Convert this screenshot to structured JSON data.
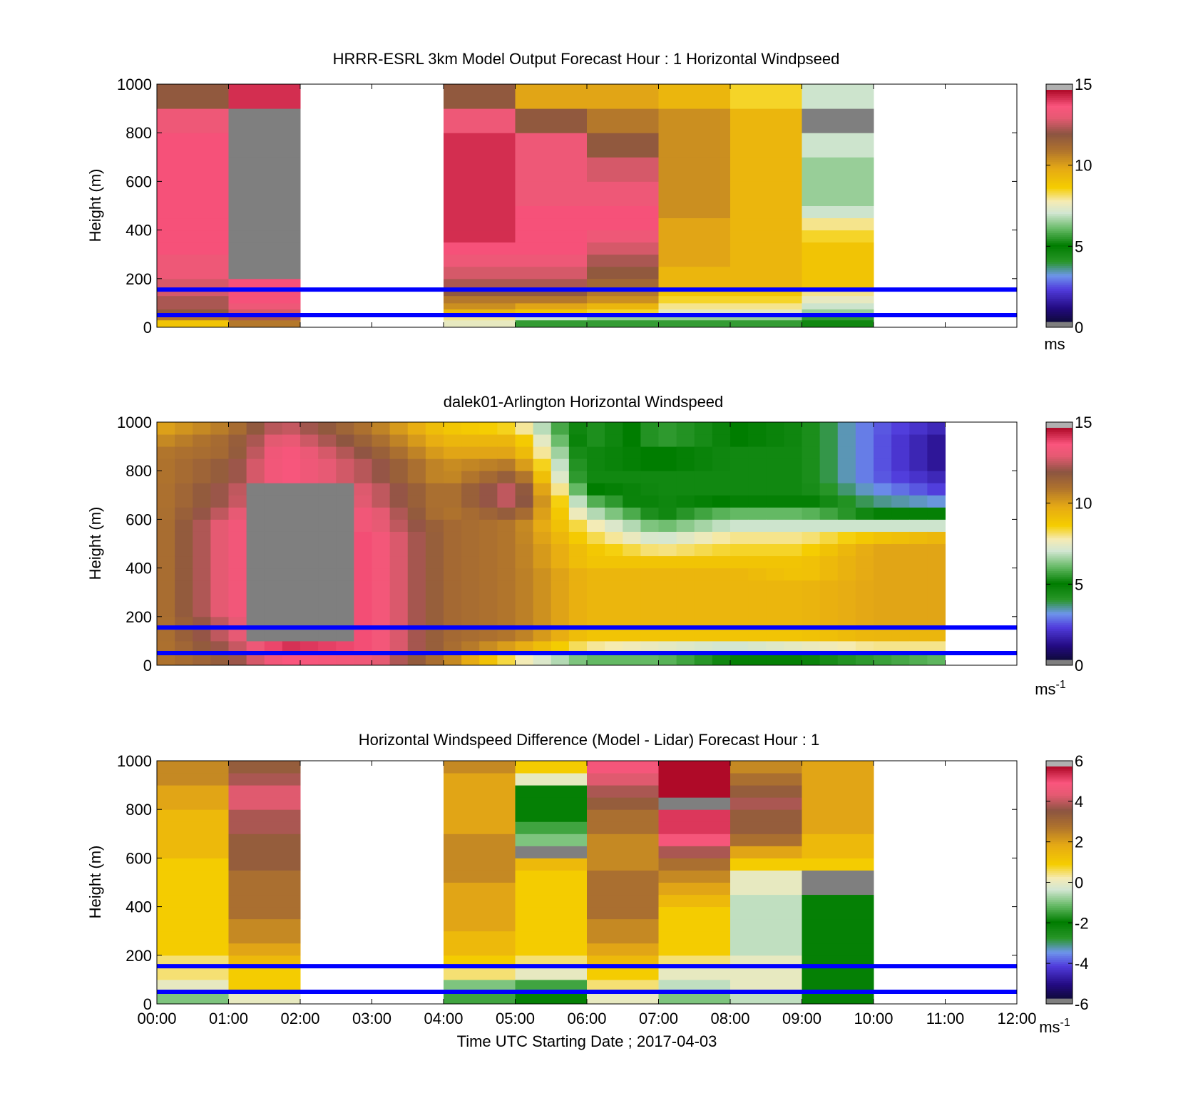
{
  "figure": {
    "xlabel": "Time UTC  Starting Date ; 2017-04-03",
    "x_ticks": [
      "00:00",
      "01:00",
      "02:00",
      "03:00",
      "04:00",
      "05:00",
      "06:00",
      "07:00",
      "08:00",
      "09:00",
      "10:00",
      "11:00",
      "12:00"
    ],
    "reference_line_color": "#0000ff"
  },
  "chart_data": [
    {
      "type": "heatmap",
      "title": "HRRR-ESRL 3km Model Output   Forecast Hour : 1 Horizontal Windpseed",
      "ylabel": "Height (m)",
      "xlim_hours": [
        0,
        12
      ],
      "ylim": [
        0,
        1000
      ],
      "y_ticks": [
        0,
        200,
        400,
        600,
        800,
        1000
      ],
      "colorbar": {
        "range": [
          0,
          15
        ],
        "ticks": [
          0,
          5,
          10,
          15
        ],
        "unit": "ms"
      },
      "reference_lines_m": [
        155,
        50
      ],
      "level_edges_m": [
        0,
        30,
        50,
        75,
        100,
        130,
        155,
        200,
        250,
        300,
        350,
        400,
        450,
        500,
        600,
        700,
        800,
        900,
        1000
      ],
      "columns": [
        {
          "hour": 0,
          "values": [
            9,
            11,
            12,
            12.5,
            12.5,
            13,
            13,
            13.5,
            13.5,
            14,
            14,
            14,
            14,
            14,
            14,
            14,
            13.5,
            12
          ]
        },
        {
          "hour": 1,
          "values": [
            11,
            12.5,
            13,
            13.5,
            14,
            14,
            14,
            "NaN",
            "NaN",
            "NaN",
            "NaN",
            "NaN",
            "NaN",
            "NaN",
            "NaN",
            "NaN",
            "NaN",
            14.5
          ]
        },
        {
          "hour": 4,
          "values": [
            7.5,
            8,
            9.5,
            10.5,
            11,
            12,
            12.5,
            13,
            13.5,
            14,
            14.5,
            14.5,
            14.5,
            14.5,
            14.5,
            14.5,
            13.5,
            12
          ]
        },
        {
          "hour": 5,
          "values": [
            5.5,
            7,
            9,
            10,
            11,
            12,
            12.5,
            13,
            13.5,
            14,
            14,
            14,
            14,
            13.5,
            13.5,
            13.5,
            12,
            10
          ]
        },
        {
          "hour": 6,
          "values": [
            5.5,
            6.5,
            8.5,
            9.5,
            10.5,
            11,
            11.5,
            12,
            12.5,
            13,
            13.5,
            14,
            14,
            13.5,
            13,
            12,
            11,
            10
          ]
        },
        {
          "hour": 7,
          "values": [
            5.5,
            6.5,
            7.5,
            8,
            8.5,
            9,
            9.5,
            9.5,
            10,
            10,
            10,
            10,
            10.5,
            10.5,
            10.5,
            10.5,
            10.5,
            9.5
          ]
        },
        {
          "hour": 8,
          "values": [
            5.5,
            6.5,
            7.5,
            8,
            8.5,
            9,
            9.5,
            9.5,
            9.5,
            9.5,
            9.5,
            9.5,
            9.5,
            9.5,
            9.5,
            9.5,
            9.5,
            8.5
          ]
        },
        {
          "hour": 9,
          "values": [
            4.5,
            5.5,
            6.5,
            7,
            7.5,
            8,
            9,
            9,
            9,
            9,
            8.5,
            8,
            7,
            6.5,
            6.5,
            7,
            "NaN",
            7
          ]
        }
      ]
    },
    {
      "type": "heatmap",
      "title": "dalek01-Arlington  Horizontal Windspeed",
      "ylabel": "Height (m)",
      "xlim_hours": [
        0,
        12
      ],
      "ylim": [
        0,
        1000
      ],
      "y_ticks": [
        0,
        200,
        400,
        600,
        800,
        1000
      ],
      "colorbar": {
        "range": [
          0,
          15
        ],
        "ticks": [
          0,
          5,
          10,
          15
        ],
        "unit": "ms",
        "unit_exponent": "-1"
      },
      "reference_lines_m": [
        155,
        50
      ],
      "level_edges_m": [
        0,
        50,
        100,
        150,
        200,
        250,
        300,
        350,
        400,
        450,
        500,
        550,
        600,
        650,
        700,
        750,
        800,
        850,
        900,
        950,
        1000
      ],
      "time_step_hours": 0.25,
      "time_end_hours": 11.0,
      "missing_region": {
        "t0": 1.3,
        "t1": 2.8,
        "z0": 100,
        "z1": 750
      },
      "profiles_by_hour": [
        {
          "hour": 0.0,
          "profile": [
            11,
            11,
            11,
            11,
            11,
            11,
            11,
            11,
            11,
            11,
            11,
            11,
            11,
            11,
            11,
            11,
            11,
            11,
            10.5,
            10
          ]
        },
        {
          "hour": 1.0,
          "profile": [
            12,
            12.5,
            13,
            13,
            13.5,
            13.5,
            13.5,
            13.5,
            13.5,
            13.5,
            13.5,
            13.5,
            13,
            12.5,
            12.5,
            12,
            12,
            11.5,
            11.5,
            11
          ]
        },
        {
          "hour": 1.75,
          "profile": [
            14,
            14.5,
            14.5,
            14.5,
            14.5,
            14.5,
            14.5,
            14.5,
            14.5,
            14.5,
            14.5,
            14.5,
            14.5,
            14.5,
            14,
            14,
            14,
            14,
            13.5,
            13
          ]
        },
        {
          "hour": 3.0,
          "profile": [
            13.5,
            14,
            14,
            14,
            14,
            14,
            14,
            14,
            14,
            14,
            14,
            13.5,
            13.5,
            13,
            13,
            12.5,
            12.5,
            12,
            11.5,
            11
          ]
        },
        {
          "hour": 4.0,
          "profile": [
            11,
            11.5,
            11.5,
            11.5,
            11.5,
            11.5,
            11.5,
            11.5,
            11.5,
            11.5,
            11.5,
            11.5,
            11,
            11,
            11,
            10.5,
            10.5,
            10,
            9.5,
            9
          ]
        },
        {
          "hour": 5.0,
          "profile": [
            8,
            10,
            11,
            11,
            11,
            11,
            11,
            11,
            11,
            11,
            11,
            11,
            12,
            13,
            13,
            12,
            11,
            10,
            9.5,
            8.5
          ]
        },
        {
          "hour": 6.0,
          "profile": [
            6,
            8,
            9,
            9.5,
            9.5,
            9.5,
            9.5,
            9.5,
            9,
            9,
            8.5,
            8,
            7,
            6,
            5,
            4.5,
            4.5,
            4.5,
            4,
            4
          ]
        },
        {
          "hour": 7.0,
          "profile": [
            6,
            7.5,
            9,
            9.5,
            9.5,
            9.5,
            9.5,
            9.5,
            9,
            8,
            7,
            6,
            5,
            4.5,
            4.5,
            4.5,
            5,
            5,
            5.5,
            5.5
          ]
        },
        {
          "hour": 8.0,
          "profile": [
            5,
            7,
            9,
            9.5,
            9.5,
            9.5,
            9.5,
            9.5,
            9,
            8.5,
            8,
            7,
            6,
            5,
            4.5,
            4.5,
            4.5,
            4.5,
            5,
            5
          ]
        },
        {
          "hour": 9.0,
          "profile": [
            5,
            7.5,
            9,
            9.5,
            9.5,
            9.5,
            9.5,
            9,
            9,
            8.5,
            8,
            7,
            6,
            5,
            4.5,
            4.5,
            4.5,
            4.5,
            4.5,
            4.5
          ]
        },
        {
          "hour": 10.0,
          "profile": [
            5.5,
            8,
            9.5,
            10,
            10,
            10,
            10,
            10,
            10,
            10,
            9,
            7,
            5,
            3.5,
            3,
            2.5,
            2.5,
            2.5,
            2.5,
            2.5
          ]
        },
        {
          "hour": 11.0,
          "profile": [
            6,
            8,
            9.5,
            10,
            10,
            10,
            10,
            10,
            10,
            10,
            9.5,
            7,
            5,
            3,
            2,
            1.5,
            1,
            1,
            1,
            1.5
          ]
        }
      ]
    },
    {
      "type": "heatmap",
      "title": "Horizontal Windspeed Difference (Model - Lidar) Forecast Hour : 1",
      "ylabel": "Height (m)",
      "xlim_hours": [
        0,
        12
      ],
      "ylim": [
        0,
        1000
      ],
      "y_ticks": [
        0,
        200,
        400,
        600,
        800,
        1000
      ],
      "colorbar": {
        "range": [
          -6,
          6
        ],
        "ticks": [
          -6,
          -4,
          -2,
          0,
          2,
          4,
          6
        ],
        "unit": "ms",
        "unit_exponent": "-1"
      },
      "reference_lines_m": [
        155,
        50
      ],
      "level_edges_m": [
        0,
        50,
        100,
        150,
        200,
        250,
        300,
        350,
        400,
        450,
        500,
        550,
        600,
        650,
        700,
        750,
        800,
        850,
        900,
        950,
        1000
      ],
      "columns": [
        {
          "hour": 0,
          "values": [
            -1,
            0,
            0.5,
            0.5,
            1,
            1,
            1,
            1,
            1,
            1,
            1,
            1,
            1.5,
            1.5,
            1.5,
            1.5,
            2,
            2,
            2.5,
            2.5
          ]
        },
        {
          "hour": 1,
          "values": [
            0,
            1,
            1,
            1.5,
            2,
            2.5,
            2.5,
            3,
            3,
            3,
            3,
            3.5,
            3.5,
            3.5,
            4,
            4,
            4.5,
            4.5,
            4,
            3.5
          ]
        },
        {
          "hour": 4,
          "values": [
            -1.5,
            -1,
            0.5,
            1,
            1.5,
            1.5,
            2,
            2,
            2,
            2,
            2.5,
            2.5,
            2.5,
            2.5,
            2,
            2,
            2,
            2,
            2,
            2.5
          ]
        },
        {
          "hour": 5,
          "values": [
            -2,
            -1.5,
            0,
            0.5,
            1,
            1,
            1,
            1,
            1,
            1,
            1,
            1.5,
            "NaN",
            -1,
            -1.5,
            -2,
            -2,
            -2,
            0,
            1
          ]
        },
        {
          "hour": 6,
          "values": [
            0,
            0.5,
            1,
            1.5,
            2,
            2.5,
            2.5,
            3,
            3,
            3,
            3,
            2.5,
            2.5,
            2.5,
            3,
            3,
            3.5,
            4,
            4.5,
            5
          ]
        },
        {
          "hour": 7,
          "values": [
            -1,
            -0.5,
            0,
            0.5,
            1,
            1,
            1,
            1,
            1.5,
            2,
            2.5,
            3,
            4,
            5,
            5.5,
            5.5,
            "NaN",
            6,
            6,
            6
          ]
        },
        {
          "hour": 8,
          "values": [
            -0.5,
            0,
            0,
            0,
            -0.5,
            -0.5,
            -0.5,
            -0.5,
            -0.5,
            0,
            0,
            1,
            2,
            3,
            3.5,
            3.5,
            4,
            3.5,
            3,
            2.5
          ]
        },
        {
          "hour": 9,
          "values": [
            -2,
            -2,
            -2,
            -2,
            -2,
            -2,
            -2,
            -2,
            -2,
            "NaN",
            "NaN",
            1,
            1.5,
            1.5,
            2,
            2,
            2,
            2,
            2,
            2
          ]
        }
      ]
    }
  ]
}
